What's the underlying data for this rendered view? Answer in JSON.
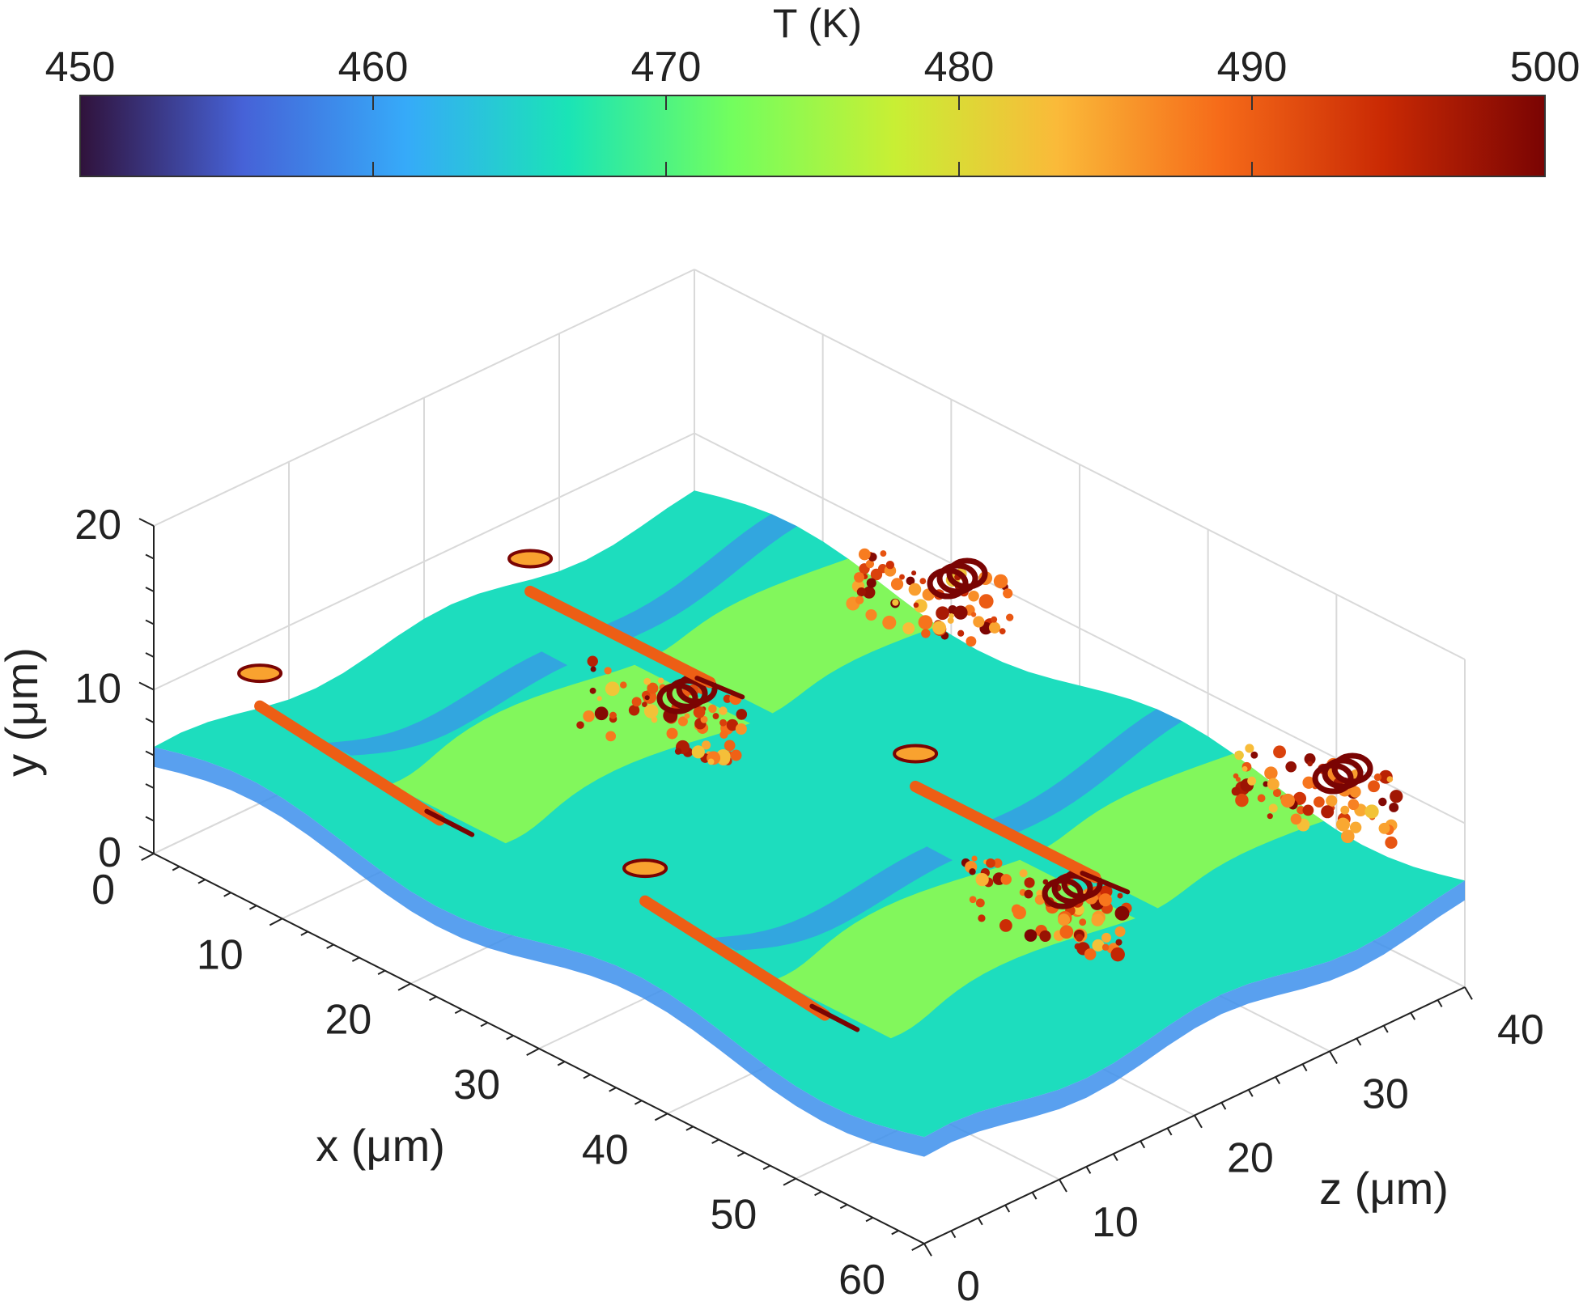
{
  "chart_data": {
    "type": "surface",
    "colorbar": {
      "title": "T (K)",
      "range": [
        450,
        500
      ],
      "ticks": [
        450,
        460,
        470,
        480,
        490,
        500
      ],
      "colormap": "turbo",
      "stops": [
        "#30123b",
        "#4662d7",
        "#36aaf9",
        "#1ae4b6",
        "#72fe5e",
        "#c8ef34",
        "#faba39",
        "#f66b19",
        "#ca2a04",
        "#7a0403"
      ]
    },
    "axes": {
      "x": {
        "label": "x (μm)",
        "range": [
          0,
          60
        ],
        "ticks": [
          0,
          10,
          20,
          30,
          40,
          50,
          60
        ]
      },
      "y": {
        "label": "y (μm)",
        "range": [
          0,
          20
        ],
        "ticks": [
          0,
          10,
          20
        ]
      },
      "z": {
        "label": "z (μm)",
        "range": [
          0,
          40
        ],
        "ticks": [
          0,
          10,
          20,
          30,
          40
        ]
      }
    },
    "grid": true,
    "view": "3d-isometric",
    "temperature_field": {
      "base_surface_K": 466,
      "wave_crests_K": 474,
      "trough_edges_K": 459,
      "hot_tips_K": 500,
      "droplets_K": 500
    },
    "structures": [
      {
        "name": "wave",
        "x_center": 15,
        "z_center": 15,
        "crest_K": 474
      },
      {
        "name": "wave",
        "x_center": 45,
        "z_center": 15,
        "crest_K": 474
      },
      {
        "name": "wave",
        "x_center": 15,
        "z_center": 35,
        "crest_K": 474
      },
      {
        "name": "wave",
        "x_center": 45,
        "z_center": 35,
        "crest_K": 474
      }
    ]
  }
}
